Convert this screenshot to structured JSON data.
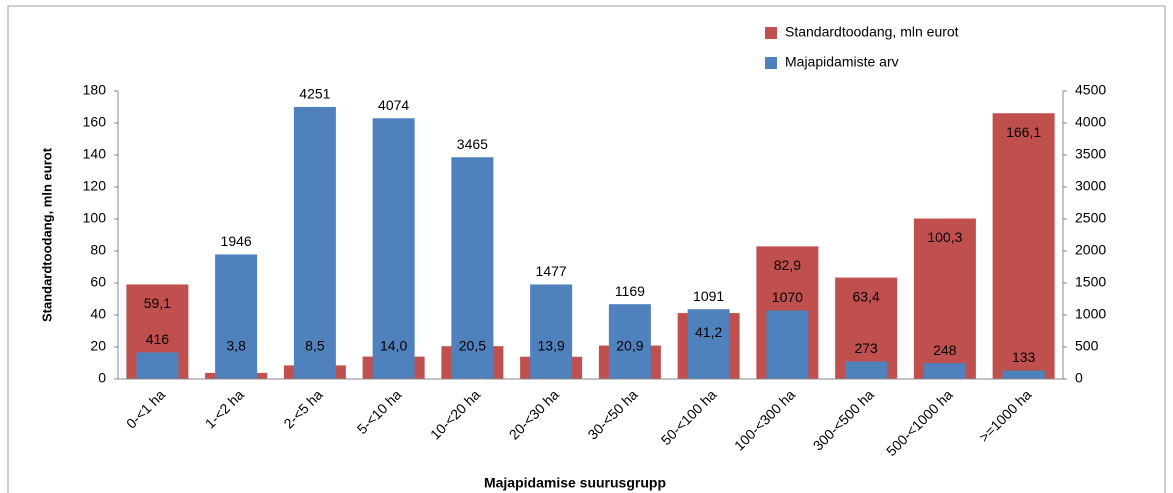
{
  "chart_data": {
    "type": "bar",
    "categories": [
      "0-<1 ha",
      "1-<2 ha",
      "2-<5 ha",
      "5-<10 ha",
      "10-<20 ha",
      "20-<30 ha",
      "30-<50 ha",
      "50-<100 ha",
      "100-<300 ha",
      "300-<500 ha",
      "500-<1000 ha",
      ">=1000 ha"
    ],
    "series": [
      {
        "name": "Standardtoodang, mln eurot",
        "color": "#c0504d",
        "axis": "y",
        "values": [
          59.1,
          3.8,
          8.5,
          14.0,
          20.5,
          13.9,
          20.9,
          41.2,
          82.9,
          63.4,
          100.3,
          166.1
        ],
        "value_labels": [
          "59,1",
          "3,8",
          "8,5",
          "14,0",
          "20,5",
          "13,9",
          "20,9",
          "41,2",
          "82,9",
          "63,4",
          "100,3",
          "166,1"
        ]
      },
      {
        "name": "Majapidamiste arv",
        "color": "#4f81bd",
        "axis": "y2",
        "values": [
          416,
          1946,
          4251,
          4074,
          3465,
          1477,
          1169,
          1091,
          1070,
          273,
          248,
          133
        ]
      }
    ],
    "ylabel": "Standardtoodang, mln eurot",
    "xlabel": "Majapidamise suurusgrupp",
    "ylim": [
      0,
      180
    ],
    "yticks": [
      0,
      20,
      40,
      60,
      80,
      100,
      120,
      140,
      160,
      180
    ],
    "y2lim": [
      0,
      4500
    ],
    "y2ticks": [
      0,
      500,
      1000,
      1500,
      2000,
      2500,
      3000,
      3500,
      4000,
      4500
    ],
    "legend": "top-right"
  }
}
